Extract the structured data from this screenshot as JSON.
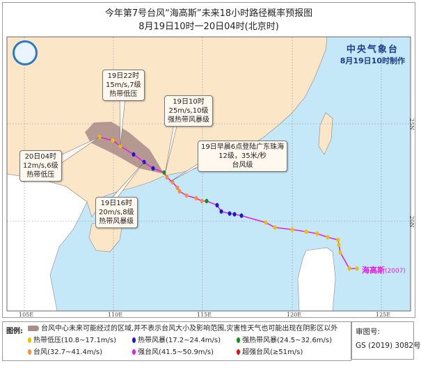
{
  "title": "今年第7号台风“海高斯”未来18小时路径概率预报图",
  "subtitle": "8月19日10时一20日04时(北京时)",
  "agency": {
    "name": "中央气象台",
    "issued": "8月19日10时制作"
  },
  "typhoon": {
    "name": "海高斯",
    "code": "(2007)"
  },
  "longitude_ticks": [
    "105E",
    "110E",
    "115E",
    "120E",
    "125E"
  ],
  "latitude_ticks": [
    "25N",
    "20N"
  ],
  "callouts": [
    {
      "lines": [
        "19日22时",
        "15m/s,7级",
        "热带低压"
      ]
    },
    {
      "lines": [
        "19日10时",
        "25m/s,10级",
        "强热带风暴级"
      ]
    },
    {
      "lines": [
        "20日04时",
        "12m/s,6级",
        "热带低压"
      ]
    },
    {
      "lines": [
        "19日早晨6点登陆广东珠海",
        "12级，35米/秒",
        "台风级"
      ]
    },
    {
      "lines": [
        "19日16时",
        "20m/s,8级",
        "热带风暴级"
      ]
    }
  ],
  "legend": {
    "title": "图例:",
    "cone": "台风中心未来可能经过的区域,并不表示台风大小及影响范围,灾害性天气也可能出现在阴影区以外",
    "items": [
      {
        "label": "热带低压(10.8~17.1m/s)",
        "color": "#f0c000"
      },
      {
        "label": "热带风暴(17.2~24.4m/s)",
        "color": "#1a1acc"
      },
      {
        "label": "强热带风暴(24.5~32.6m/s)",
        "color": "#1a8a1a"
      },
      {
        "label": "台风(32.7~41.4m/s)",
        "color": "#f59040"
      },
      {
        "label": "强台风(41.5~50.9m/s)",
        "color": "#e020e0"
      },
      {
        "label": "超强台风(≥51m/s)",
        "color": "#e01010"
      }
    ]
  },
  "review": {
    "label": "审图号:",
    "number": "GS (2019) 3082号"
  },
  "colors": {
    "ocean": "#c4e8f8",
    "china": "#fce6c8",
    "other_land": "#ffffff",
    "track": "#e020e0",
    "cone": "#9e7e80"
  }
}
